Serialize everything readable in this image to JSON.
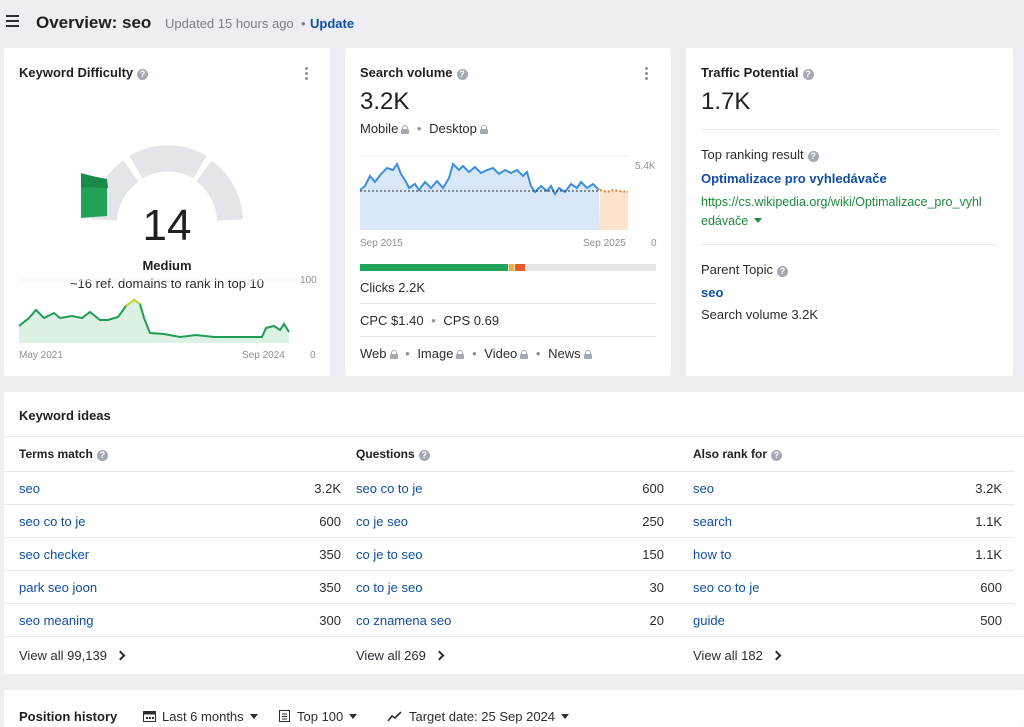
{
  "header": {
    "title": "Overview: seo",
    "updated": "Updated 15 hours ago",
    "separator": "•",
    "update_label": "Update"
  },
  "keyword_difficulty": {
    "title": "Keyword Difficulty",
    "value": "14",
    "level": "Medium",
    "subtitle": "~16 ref. domains to rank in top 10",
    "chart": {
      "y_max_label": "100",
      "y_min_label": "0",
      "x_start_label": "May 2021",
      "x_end_label": "Sep 2024"
    }
  },
  "search_volume": {
    "title": "Search volume",
    "value": "3.2K",
    "mobile_label": "Mobile",
    "desktop_label": "Desktop",
    "chart": {
      "y_max_label": "5.4K",
      "y_min_label": "0",
      "x_start_label": "Sep 2015",
      "x_end_label": "Sep 2025"
    },
    "clicks": "Clicks 2.2K",
    "cpc": "CPC $1.40",
    "cps": "CPS 0.69",
    "sep": "•",
    "serp_types": [
      "Web",
      "Image",
      "Video",
      "News"
    ]
  },
  "traffic_potential": {
    "title": "Traffic Potential",
    "value": "1.7K",
    "top_result_label": "Top ranking result",
    "top_result_title": "Optimalizace pro vyhledávače",
    "top_result_url_line1": "https://cs.wikipedia.org/wiki/Optimalizace_pro_vyhl",
    "top_result_url_line2": "edávače",
    "parent_topic_label": "Parent Topic",
    "parent_topic": "seo",
    "parent_volume": "Search volume 3.2K"
  },
  "keyword_ideas": {
    "title": "Keyword ideas",
    "columns": [
      {
        "header": "Terms match",
        "rows": [
          {
            "keyword": "seo",
            "volume": "3.2K"
          },
          {
            "keyword": "seo co to je",
            "volume": "600"
          },
          {
            "keyword": "seo checker",
            "volume": "350"
          },
          {
            "keyword": "park seo joon",
            "volume": "350"
          },
          {
            "keyword": "seo meaning",
            "volume": "300"
          }
        ],
        "view_all": "View all 99,139"
      },
      {
        "header": "Questions",
        "rows": [
          {
            "keyword": "seo co to je",
            "volume": "600"
          },
          {
            "keyword": "co je seo",
            "volume": "250"
          },
          {
            "keyword": "co je to seo",
            "volume": "150"
          },
          {
            "keyword": "co to je seo",
            "volume": "30"
          },
          {
            "keyword": "co znamena seo",
            "volume": "20"
          }
        ],
        "view_all": "View all 269"
      },
      {
        "header": "Also rank for",
        "rows": [
          {
            "keyword": "seo",
            "volume": "3.2K"
          },
          {
            "keyword": "search",
            "volume": "1.1K"
          },
          {
            "keyword": "how to",
            "volume": "1.1K"
          },
          {
            "keyword": "seo co to je",
            "volume": "600"
          },
          {
            "keyword": "guide",
            "volume": "500"
          }
        ],
        "view_all": "View all 182"
      }
    ]
  },
  "position_history": {
    "title": "Position history",
    "period": "Last 6 months",
    "top": "Top 100",
    "target": "Target date: 25 Sep 2024"
  },
  "colors": {
    "accent_link": "#0f4ea8",
    "url_green": "#1e8a3c",
    "kd_green": "#21a35a",
    "gauge_gray": "#e3e5e8"
  }
}
